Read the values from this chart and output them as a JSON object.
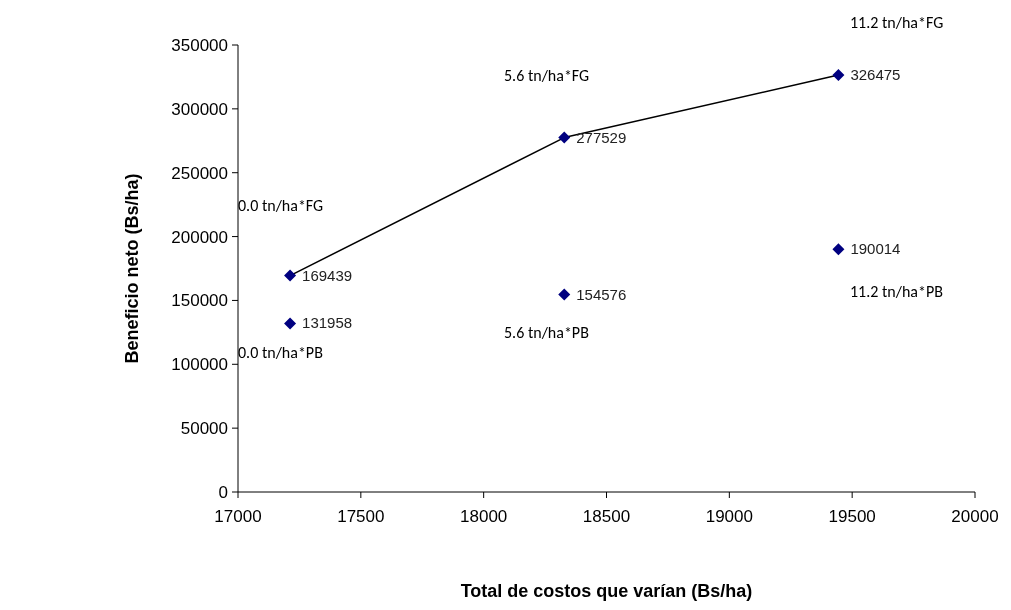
{
  "chart_data": {
    "type": "scatter",
    "xlabel": "Total de costos que varían (Bs/ha)",
    "ylabel": "Beneficio neto (Bs/ha)",
    "xlim": [
      17000,
      20000
    ],
    "xticks": [
      17000,
      17500,
      18000,
      18500,
      19000,
      19500,
      20000
    ],
    "ylim": [
      0,
      350000
    ],
    "yticks": [
      0,
      50000,
      100000,
      150000,
      200000,
      250000,
      300000,
      350000
    ],
    "grid": false,
    "marker": "diamond",
    "series": [
      {
        "type": "line",
        "color": "#000000",
        "marker": "none",
        "x": [
          17212,
          18328,
          19444
        ],
        "values": [
          169439,
          277529,
          326475
        ]
      },
      {
        "color": "#000080",
        "x": [
          17212,
          18328,
          19444
        ],
        "values": [
          169439,
          277529,
          326475
        ],
        "value_labels": [
          "169439",
          "277529",
          "326475"
        ]
      },
      {
        "color": "#000080",
        "x": [
          17212,
          18328,
          19444
        ],
        "values": [
          131958,
          154576,
          190014
        ],
        "value_labels": [
          "131958",
          "154576",
          "190014"
        ]
      }
    ],
    "annotations": [
      "0.0 tn/ha*FG",
      "5.6 tn/ha*FG",
      "11.2 tn/ha*FG",
      "0.0 tn/ha*PB",
      "5.6 tn/ha*PB",
      "11.2 tn/ha*PB"
    ]
  }
}
